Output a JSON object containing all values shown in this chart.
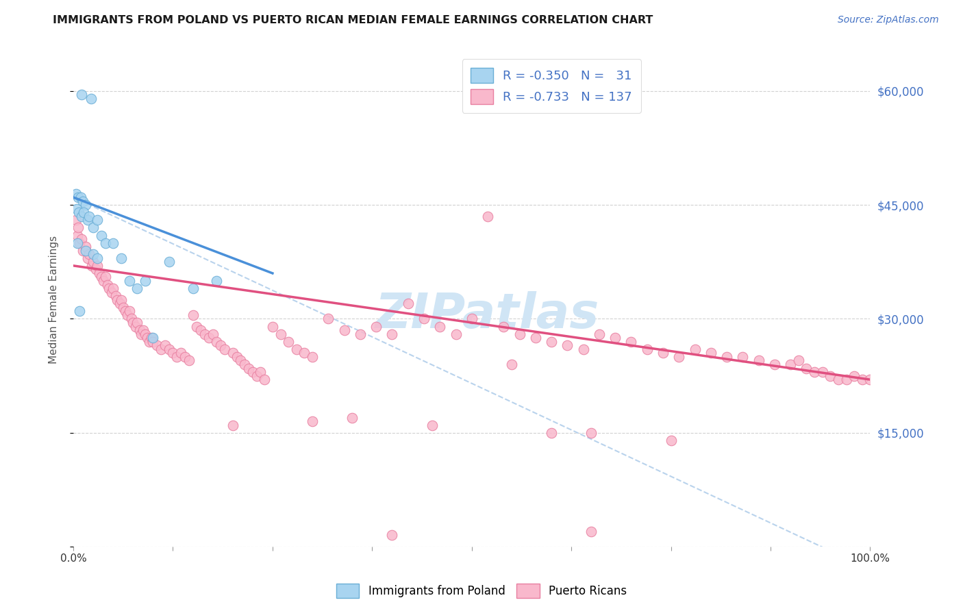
{
  "title": "IMMIGRANTS FROM POLAND VS PUERTO RICAN MEDIAN FEMALE EARNINGS CORRELATION CHART",
  "source": "Source: ZipAtlas.com",
  "ylabel": "Median Female Earnings",
  "blue_scatter_color": "#a8d4f0",
  "blue_scatter_edge": "#6aaed6",
  "pink_scatter_color": "#f9b8cc",
  "pink_scatter_edge": "#e87fa0",
  "blue_line_color": "#4a90d9",
  "pink_line_color": "#e05080",
  "dashed_line_color": "#a8c8e8",
  "watermark_color": "#d0e5f5",
  "xlim": [
    0,
    100
  ],
  "ylim": [
    0,
    65000
  ],
  "blue_line_x": [
    0,
    25
  ],
  "blue_line_y": [
    46000,
    36000
  ],
  "pink_line_x": [
    0,
    100
  ],
  "pink_line_y": [
    37000,
    22000
  ],
  "dashed_line_x": [
    0,
    100
  ],
  "dashed_line_y": [
    46000,
    -3000
  ],
  "blue_points": [
    [
      1.0,
      59500
    ],
    [
      2.2,
      59000
    ],
    [
      0.3,
      46500
    ],
    [
      0.6,
      46000
    ],
    [
      0.9,
      46000
    ],
    [
      1.2,
      45500
    ],
    [
      1.5,
      45000
    ],
    [
      0.4,
      44500
    ],
    [
      0.7,
      44000
    ],
    [
      1.0,
      43500
    ],
    [
      1.3,
      44000
    ],
    [
      1.8,
      43000
    ],
    [
      2.0,
      43500
    ],
    [
      2.5,
      42000
    ],
    [
      3.0,
      43000
    ],
    [
      3.5,
      41000
    ],
    [
      0.5,
      40000
    ],
    [
      1.5,
      39000
    ],
    [
      2.5,
      38500
    ],
    [
      3.0,
      38000
    ],
    [
      4.0,
      40000
    ],
    [
      5.0,
      40000
    ],
    [
      6.0,
      38000
    ],
    [
      7.0,
      35000
    ],
    [
      8.0,
      34000
    ],
    [
      9.0,
      35000
    ],
    [
      12.0,
      37500
    ],
    [
      15.0,
      34000
    ],
    [
      18.0,
      35000
    ],
    [
      10.0,
      27500
    ],
    [
      0.8,
      31000
    ]
  ],
  "pink_points": [
    [
      0.3,
      43000
    ],
    [
      0.5,
      41000
    ],
    [
      0.6,
      42000
    ],
    [
      0.8,
      40000
    ],
    [
      1.0,
      40500
    ],
    [
      1.2,
      39000
    ],
    [
      1.5,
      39500
    ],
    [
      1.8,
      38000
    ],
    [
      2.0,
      38500
    ],
    [
      2.3,
      37000
    ],
    [
      2.5,
      37500
    ],
    [
      2.8,
      36500
    ],
    [
      3.0,
      37000
    ],
    [
      3.3,
      36000
    ],
    [
      3.5,
      35500
    ],
    [
      3.8,
      35000
    ],
    [
      4.0,
      35500
    ],
    [
      4.3,
      34500
    ],
    [
      4.5,
      34000
    ],
    [
      4.8,
      33500
    ],
    [
      5.0,
      34000
    ],
    [
      5.3,
      33000
    ],
    [
      5.5,
      32500
    ],
    [
      5.8,
      32000
    ],
    [
      6.0,
      32500
    ],
    [
      6.3,
      31500
    ],
    [
      6.5,
      31000
    ],
    [
      6.8,
      30500
    ],
    [
      7.0,
      31000
    ],
    [
      7.3,
      30000
    ],
    [
      7.5,
      29500
    ],
    [
      7.8,
      29000
    ],
    [
      8.0,
      29500
    ],
    [
      8.3,
      28500
    ],
    [
      8.5,
      28000
    ],
    [
      8.8,
      28500
    ],
    [
      9.0,
      28000
    ],
    [
      9.3,
      27500
    ],
    [
      9.5,
      27000
    ],
    [
      9.8,
      27500
    ],
    [
      10.0,
      27000
    ],
    [
      10.5,
      26500
    ],
    [
      11.0,
      26000
    ],
    [
      11.5,
      26500
    ],
    [
      12.0,
      26000
    ],
    [
      12.5,
      25500
    ],
    [
      13.0,
      25000
    ],
    [
      13.5,
      25500
    ],
    [
      14.0,
      25000
    ],
    [
      14.5,
      24500
    ],
    [
      15.0,
      30500
    ],
    [
      15.5,
      29000
    ],
    [
      16.0,
      28500
    ],
    [
      16.5,
      28000
    ],
    [
      17.0,
      27500
    ],
    [
      17.5,
      28000
    ],
    [
      18.0,
      27000
    ],
    [
      18.5,
      26500
    ],
    [
      19.0,
      26000
    ],
    [
      20.0,
      25500
    ],
    [
      20.5,
      25000
    ],
    [
      21.0,
      24500
    ],
    [
      21.5,
      24000
    ],
    [
      22.0,
      23500
    ],
    [
      22.5,
      23000
    ],
    [
      23.0,
      22500
    ],
    [
      23.5,
      23000
    ],
    [
      24.0,
      22000
    ],
    [
      25.0,
      29000
    ],
    [
      26.0,
      28000
    ],
    [
      27.0,
      27000
    ],
    [
      28.0,
      26000
    ],
    [
      29.0,
      25500
    ],
    [
      30.0,
      25000
    ],
    [
      32.0,
      30000
    ],
    [
      34.0,
      28500
    ],
    [
      36.0,
      28000
    ],
    [
      38.0,
      29000
    ],
    [
      40.0,
      28000
    ],
    [
      42.0,
      32000
    ],
    [
      44.0,
      30000
    ],
    [
      46.0,
      29000
    ],
    [
      48.0,
      28000
    ],
    [
      50.0,
      30000
    ],
    [
      52.0,
      43500
    ],
    [
      54.0,
      29000
    ],
    [
      56.0,
      28000
    ],
    [
      58.0,
      27500
    ],
    [
      60.0,
      27000
    ],
    [
      62.0,
      26500
    ],
    [
      64.0,
      26000
    ],
    [
      66.0,
      28000
    ],
    [
      68.0,
      27500
    ],
    [
      70.0,
      27000
    ],
    [
      72.0,
      26000
    ],
    [
      74.0,
      25500
    ],
    [
      76.0,
      25000
    ],
    [
      78.0,
      26000
    ],
    [
      80.0,
      25500
    ],
    [
      82.0,
      25000
    ],
    [
      84.0,
      25000
    ],
    [
      86.0,
      24500
    ],
    [
      88.0,
      24000
    ],
    [
      90.0,
      24000
    ],
    [
      91.0,
      24500
    ],
    [
      92.0,
      23500
    ],
    [
      93.0,
      23000
    ],
    [
      94.0,
      23000
    ],
    [
      95.0,
      22500
    ],
    [
      96.0,
      22000
    ],
    [
      97.0,
      22000
    ],
    [
      98.0,
      22500
    ],
    [
      99.0,
      22000
    ],
    [
      100.0,
      22000
    ],
    [
      20.0,
      16000
    ],
    [
      30.0,
      16500
    ],
    [
      60.0,
      15000
    ],
    [
      65.0,
      15000
    ],
    [
      40.0,
      1500
    ],
    [
      65.0,
      2000
    ],
    [
      35.0,
      17000
    ],
    [
      45.0,
      16000
    ],
    [
      55.0,
      24000
    ],
    [
      75.0,
      14000
    ]
  ]
}
